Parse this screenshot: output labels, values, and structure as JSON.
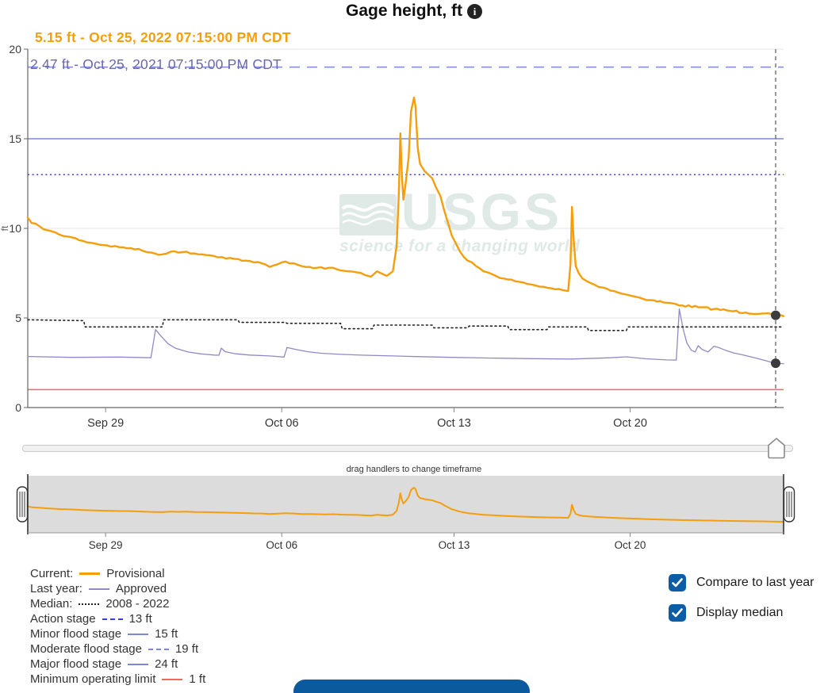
{
  "header": {
    "title": "Gage height, ft"
  },
  "readouts": {
    "current": "5.15 ft - Oct 25, 2022 07:15:00 PM CDT",
    "last_year": "2.47 ft - Oct 25, 2021 07:15:00 PM CDT"
  },
  "watermark": {
    "logo_text": "USGS",
    "tagline": "science for a changing world"
  },
  "timeframe_slider": {
    "hint": "drag handlers to change timeframe"
  },
  "legend": {
    "rows": [
      {
        "label": "Current:",
        "value": "Provisional",
        "line": {
          "color": "#f59e0b",
          "style": "solid",
          "width": 3
        }
      },
      {
        "label": "Last year:",
        "value": "Approved",
        "line": {
          "color": "#9189c5",
          "style": "solid",
          "width": 2
        }
      },
      {
        "label": "Median:",
        "value": "2008 - 2022",
        "line": {
          "color": "#222222",
          "style": "dotted",
          "width": 2
        }
      },
      {
        "label": "Action stage",
        "value": "13 ft",
        "line": {
          "color": "#3b3bd8",
          "style": "dashed",
          "width": 2
        }
      },
      {
        "label": "Minor flood stage",
        "value": "15 ft",
        "line": {
          "color": "#7b87d9",
          "style": "solid",
          "width": 2
        }
      },
      {
        "label": "Moderate flood stage",
        "value": "19 ft",
        "line": {
          "color": "#7b87d9",
          "style": "dashdot",
          "width": 2
        }
      },
      {
        "label": "Major flood stage",
        "value": "24 ft",
        "line": {
          "color": "#7b87d9",
          "style": "solid",
          "width": 2
        }
      },
      {
        "label": "Minimum operating limit",
        "value": "1 ft",
        "line": {
          "color": "#f2685c",
          "style": "solid",
          "width": 2
        }
      }
    ]
  },
  "controls": {
    "checkboxes": [
      {
        "label": "Compare to last year",
        "checked": true
      },
      {
        "label": "Display median",
        "checked": true
      }
    ]
  },
  "colors": {
    "current": "#f59e0b",
    "last_year": "#9189c5",
    "median": "#222222",
    "action_stage": "#3b3bd8",
    "flood_blue": "#7b87d9",
    "min_operating": "#f2685c",
    "checkbox_blue": "#0c5da5",
    "button_blue": "#0b5a9d",
    "grid": "#e6e6e6",
    "axis": "#666666"
  },
  "chart_data": {
    "type": "line",
    "title": "Gage height, ft",
    "ylabel": "ft",
    "ylim": [
      0,
      20
    ],
    "yticks": [
      0,
      5,
      10,
      15,
      20
    ],
    "x_note": "x = fraction of the plotted 30-day window (late Sep 25 to Oct 25, 2022)",
    "xticks": [
      {
        "label": "Sep 29",
        "x": 0.103
      },
      {
        "label": "Oct 06",
        "x": 0.336
      },
      {
        "label": "Oct 13",
        "x": 0.564
      },
      {
        "label": "Oct 20",
        "x": 0.797
      }
    ],
    "grid": true,
    "legend_position": "bottom-left",
    "series": [
      {
        "name": "Current year (Provisional)",
        "color": "#f59e0b",
        "style": "solid",
        "width": 2.4,
        "noisy": true,
        "points": [
          [
            0,
            10.6
          ],
          [
            0.005,
            10.3
          ],
          [
            0.016,
            10.1
          ],
          [
            0.026,
            9.9
          ],
          [
            0.042,
            9.65
          ],
          [
            0.058,
            9.5
          ],
          [
            0.073,
            9.3
          ],
          [
            0.089,
            9.15
          ],
          [
            0.105,
            9.05
          ],
          [
            0.121,
            8.95
          ],
          [
            0.136,
            8.9
          ],
          [
            0.152,
            8.75
          ],
          [
            0.168,
            8.6
          ],
          [
            0.178,
            8.55
          ],
          [
            0.189,
            8.7
          ],
          [
            0.199,
            8.65
          ],
          [
            0.21,
            8.7
          ],
          [
            0.22,
            8.6
          ],
          [
            0.231,
            8.55
          ],
          [
            0.241,
            8.5
          ],
          [
            0.257,
            8.4
          ],
          [
            0.273,
            8.3
          ],
          [
            0.289,
            8.2
          ],
          [
            0.299,
            8.1
          ],
          [
            0.31,
            8.05
          ],
          [
            0.32,
            7.85
          ],
          [
            0.331,
            8.0
          ],
          [
            0.341,
            8.15
          ],
          [
            0.352,
            8.05
          ],
          [
            0.362,
            7.9
          ],
          [
            0.373,
            7.85
          ],
          [
            0.383,
            7.8
          ],
          [
            0.393,
            7.75
          ],
          [
            0.404,
            7.8
          ],
          [
            0.414,
            7.65
          ],
          [
            0.425,
            7.6
          ],
          [
            0.435,
            7.55
          ],
          [
            0.446,
            7.4
          ],
          [
            0.454,
            7.3
          ],
          [
            0.462,
            7.6
          ],
          [
            0.467,
            7.5
          ],
          [
            0.475,
            7.35
          ],
          [
            0.483,
            7.6
          ],
          [
            0.488,
            9.0
          ],
          [
            0.491,
            12.0
          ],
          [
            0.493,
            15.3
          ],
          [
            0.495,
            13.0
          ],
          [
            0.497,
            11.6
          ],
          [
            0.5,
            12.5
          ],
          [
            0.504,
            14.0
          ],
          [
            0.507,
            16.5
          ],
          [
            0.511,
            17.3
          ],
          [
            0.513,
            16.8
          ],
          [
            0.516,
            14.5
          ],
          [
            0.519,
            13.6
          ],
          [
            0.525,
            13.2
          ],
          [
            0.53,
            13.0
          ],
          [
            0.535,
            12.8
          ],
          [
            0.54,
            12.3
          ],
          [
            0.546,
            11.8
          ],
          [
            0.551,
            11.0
          ],
          [
            0.556,
            10.3
          ],
          [
            0.561,
            9.6
          ],
          [
            0.567,
            9.1
          ],
          [
            0.572,
            8.7
          ],
          [
            0.582,
            8.2
          ],
          [
            0.593,
            7.9
          ],
          [
            0.603,
            7.6
          ],
          [
            0.614,
            7.45
          ],
          [
            0.63,
            7.2
          ],
          [
            0.645,
            7.05
          ],
          [
            0.661,
            6.9
          ],
          [
            0.677,
            6.75
          ],
          [
            0.693,
            6.65
          ],
          [
            0.708,
            6.55
          ],
          [
            0.715,
            6.5
          ],
          [
            0.718,
            8.0
          ],
          [
            0.72,
            11.2
          ],
          [
            0.722,
            9.5
          ],
          [
            0.725,
            7.9
          ],
          [
            0.729,
            7.5
          ],
          [
            0.734,
            7.2
          ],
          [
            0.742,
            7.0
          ],
          [
            0.75,
            6.85
          ],
          [
            0.761,
            6.7
          ],
          [
            0.776,
            6.5
          ],
          [
            0.792,
            6.3
          ],
          [
            0.808,
            6.15
          ],
          [
            0.824,
            6.0
          ],
          [
            0.845,
            5.85
          ],
          [
            0.866,
            5.7
          ],
          [
            0.887,
            5.6
          ],
          [
            0.908,
            5.5
          ],
          [
            0.929,
            5.4
          ],
          [
            0.95,
            5.3
          ],
          [
            0.971,
            5.25
          ],
          [
            0.989,
            5.15
          ],
          [
            1,
            5.1
          ]
        ]
      },
      {
        "name": "Last year (Approved)",
        "color": "#9189c5",
        "style": "solid",
        "width": 1.3,
        "noisy": false,
        "points": [
          [
            0,
            2.85
          ],
          [
            0.058,
            2.8
          ],
          [
            0.121,
            2.82
          ],
          [
            0.163,
            2.78
          ],
          [
            0.169,
            4.35
          ],
          [
            0.176,
            4.0
          ],
          [
            0.186,
            3.55
          ],
          [
            0.196,
            3.3
          ],
          [
            0.212,
            3.1
          ],
          [
            0.228,
            3.0
          ],
          [
            0.247,
            2.93
          ],
          [
            0.253,
            2.92
          ],
          [
            0.256,
            3.32
          ],
          [
            0.261,
            3.12
          ],
          [
            0.275,
            3.0
          ],
          [
            0.294,
            2.93
          ],
          [
            0.32,
            2.88
          ],
          [
            0.339,
            2.82
          ],
          [
            0.343,
            3.35
          ],
          [
            0.354,
            3.25
          ],
          [
            0.37,
            3.12
          ],
          [
            0.388,
            3.03
          ],
          [
            0.414,
            2.97
          ],
          [
            0.446,
            2.92
          ],
          [
            0.483,
            2.88
          ],
          [
            0.519,
            2.84
          ],
          [
            0.561,
            2.8
          ],
          [
            0.614,
            2.76
          ],
          [
            0.666,
            2.73
          ],
          [
            0.719,
            2.71
          ],
          [
            0.771,
            2.78
          ],
          [
            0.792,
            2.83
          ],
          [
            0.818,
            2.72
          ],
          [
            0.845,
            2.66
          ],
          [
            0.858,
            2.65
          ],
          [
            0.862,
            5.5
          ],
          [
            0.867,
            4.4
          ],
          [
            0.872,
            3.6
          ],
          [
            0.878,
            3.2
          ],
          [
            0.883,
            3.1
          ],
          [
            0.887,
            3.45
          ],
          [
            0.892,
            3.25
          ],
          [
            0.9,
            3.1
          ],
          [
            0.908,
            3.42
          ],
          [
            0.914,
            3.35
          ],
          [
            0.923,
            3.2
          ],
          [
            0.934,
            3.05
          ],
          [
            0.948,
            2.92
          ],
          [
            0.962,
            2.78
          ],
          [
            0.976,
            2.62
          ],
          [
            0.989,
            2.47
          ],
          [
            1,
            2.45
          ]
        ]
      },
      {
        "name": "Median 2008 - 2022",
        "color": "#222222",
        "style": "dotted",
        "width": 1.6,
        "noisy": false,
        "points": [
          [
            0,
            4.9
          ],
          [
            0.074,
            4.85
          ],
          [
            0.076,
            4.5
          ],
          [
            0.178,
            4.5
          ],
          [
            0.18,
            4.9
          ],
          [
            0.278,
            4.9
          ],
          [
            0.28,
            4.75
          ],
          [
            0.341,
            4.75
          ],
          [
            0.343,
            4.7
          ],
          [
            0.414,
            4.7
          ],
          [
            0.416,
            4.4
          ],
          [
            0.456,
            4.4
          ],
          [
            0.458,
            4.6
          ],
          [
            0.535,
            4.6
          ],
          [
            0.537,
            4.45
          ],
          [
            0.582,
            4.45
          ],
          [
            0.584,
            4.55
          ],
          [
            0.635,
            4.55
          ],
          [
            0.637,
            4.35
          ],
          [
            0.687,
            4.35
          ],
          [
            0.689,
            4.5
          ],
          [
            0.74,
            4.5
          ],
          [
            0.742,
            4.3
          ],
          [
            0.792,
            4.3
          ],
          [
            0.794,
            4.5
          ],
          [
            1,
            4.5
          ]
        ]
      }
    ],
    "reference_lines": [
      {
        "name": "Moderate flood stage",
        "value": 19,
        "style": "dashed",
        "color": "#7b87d9"
      },
      {
        "name": "Minor flood stage",
        "value": 15,
        "style": "solid",
        "color": "#7b87d9"
      },
      {
        "name": "Action stage",
        "value": 13,
        "style": "dotted",
        "color": "#3b3bd8"
      },
      {
        "name": "Minimum operating limit",
        "value": 1,
        "style": "solid",
        "color": "#f2685c"
      },
      {
        "name": "Major flood stage",
        "value": 24,
        "style": "solid",
        "color": "#7b87d9"
      }
    ],
    "cursor": {
      "x": 0.9895,
      "markers": [
        {
          "series": "current",
          "value": 5.15
        },
        {
          "series": "last_year",
          "value": 2.47
        }
      ]
    },
    "brush": {
      "shows": "Current year (Provisional)",
      "xticks_same_as_main": true
    }
  }
}
